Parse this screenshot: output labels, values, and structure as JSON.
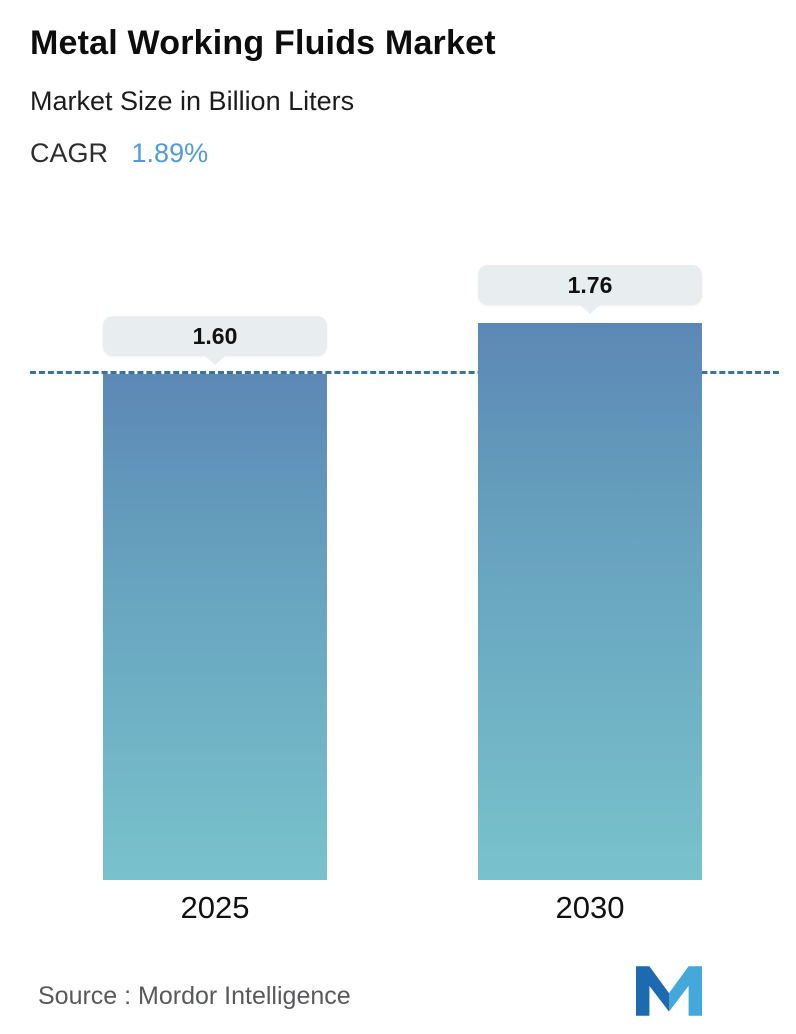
{
  "header": {
    "title": "Metal Working Fluids Market",
    "subtitle": "Market Size in Billion Liters",
    "cagr_label": "CAGR",
    "cagr_value": "1.89%"
  },
  "chart_data": {
    "type": "bar",
    "categories": [
      "2025",
      "2030"
    ],
    "values": [
      1.6,
      1.76
    ],
    "value_labels": [
      "1.60",
      "1.76"
    ],
    "title": "Metal Working Fluids Market",
    "subtitle": "Market Size in Billion Liters",
    "cagr": "1.89%",
    "ylabel": "Market Size in Billion Liters",
    "ylim": [
      0,
      2.0
    ],
    "reference_line": 1.6,
    "grid": false,
    "legend": "none",
    "bar_color_top": "#5c88b5",
    "bar_color_bottom": "#79c2cc",
    "reference_line_color": "#36749f",
    "label_bubble_color": "#e8eef0"
  },
  "footer": {
    "source": "Source :  Mordor Intelligence",
    "logo": "mordor-intelligence-logo"
  },
  "colors": {
    "accent_blue": "#4f9cd6",
    "text_dark": "#0d0d0d",
    "text_gray": "#58595b",
    "logo_dark_blue": "#1e6ab0",
    "logo_light_blue": "#44a8da"
  }
}
